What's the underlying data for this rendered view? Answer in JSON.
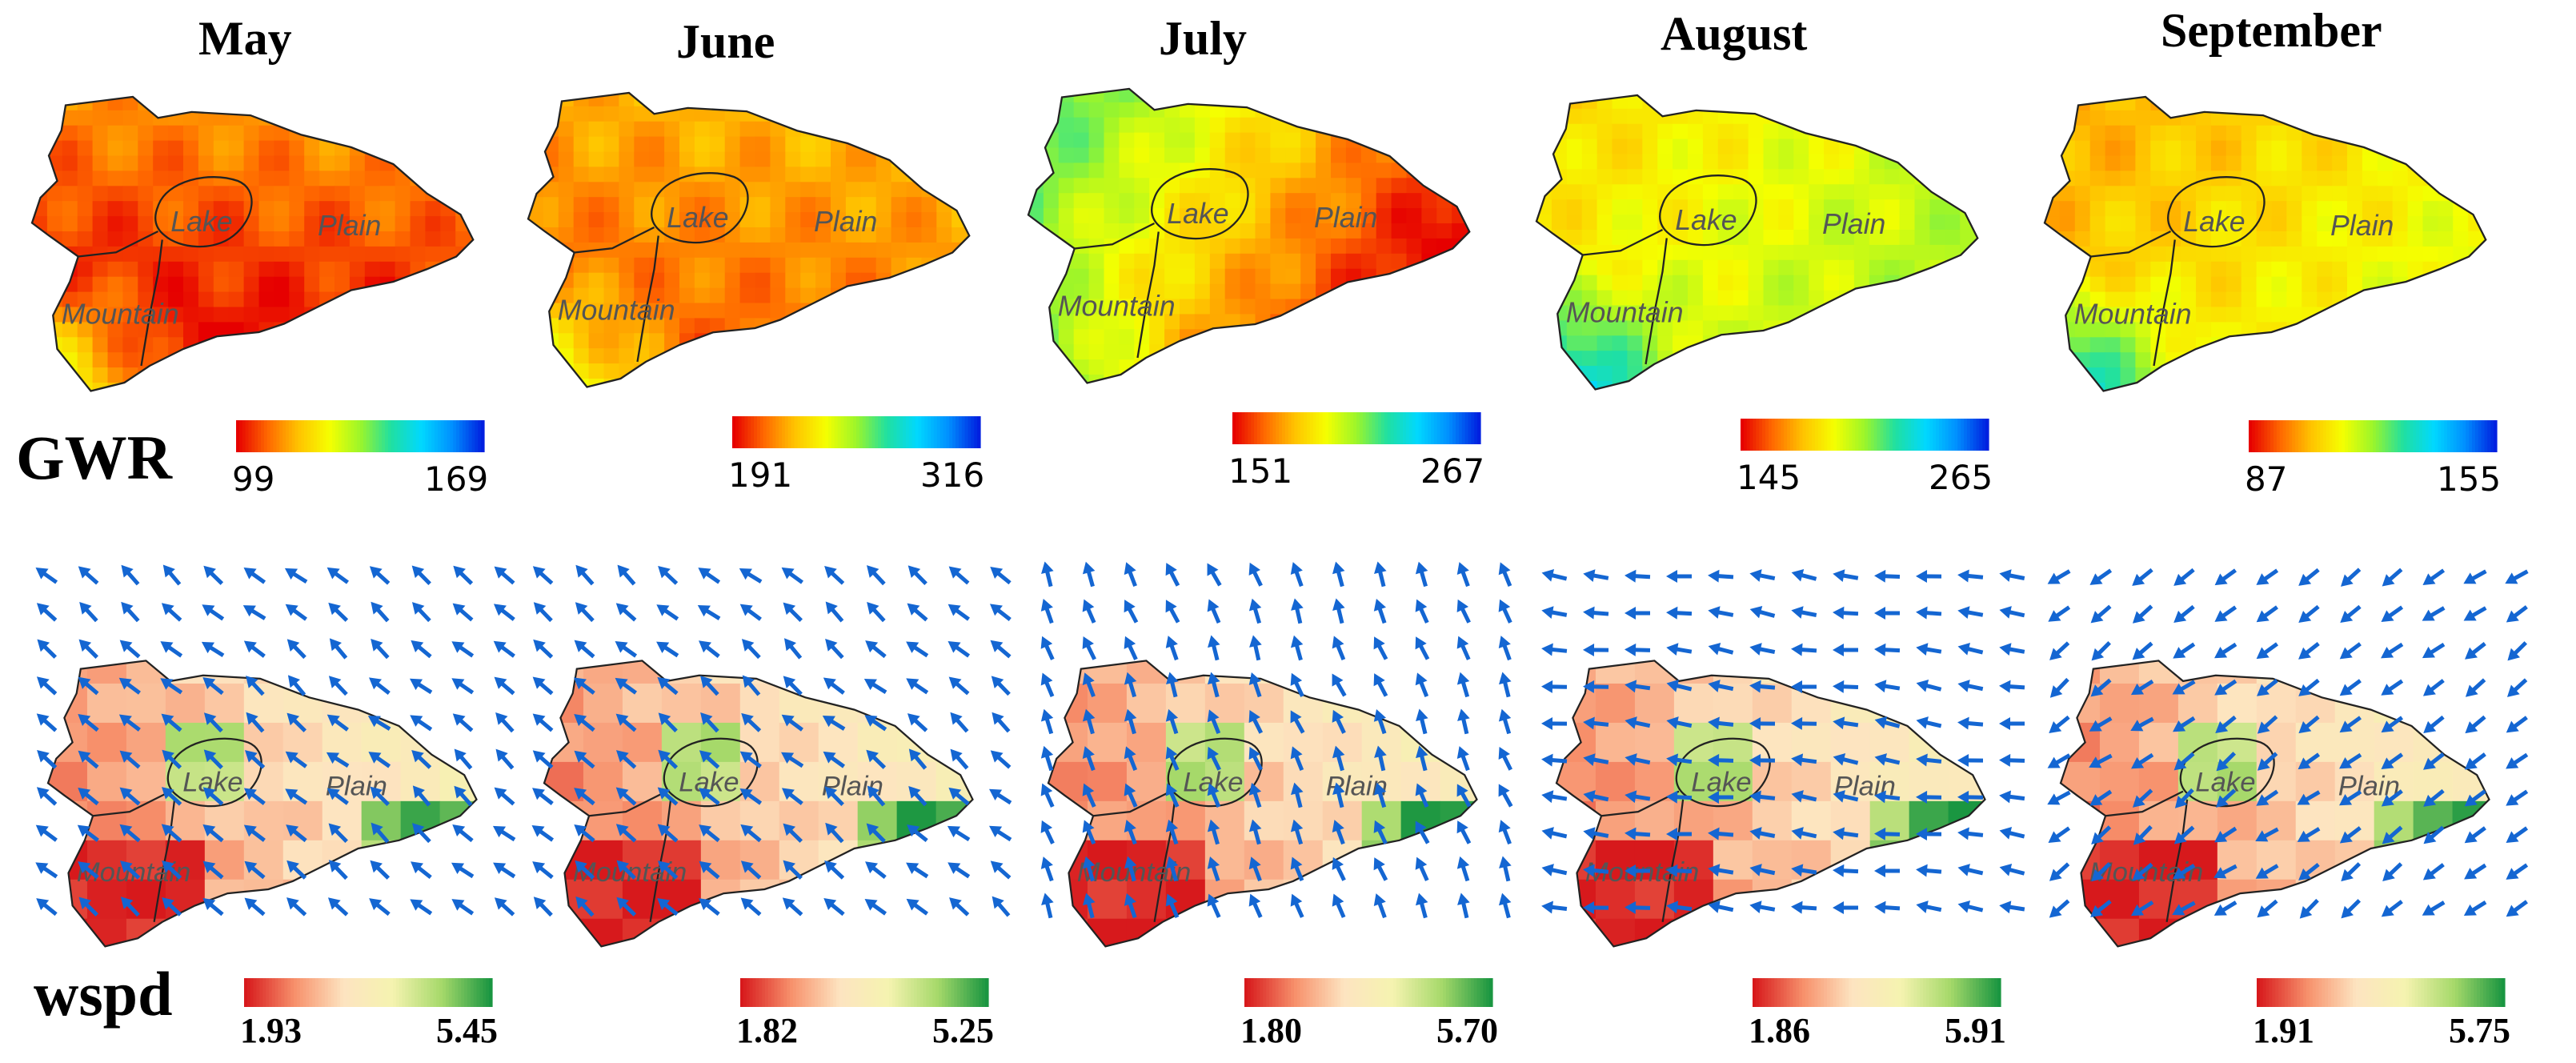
{
  "months": [
    "May",
    "June",
    "July",
    "August",
    "September"
  ],
  "row_labels": {
    "gwr": "GWR",
    "wspd": "wspd"
  },
  "region_labels": {
    "lake": "Lake",
    "plain": "Plain",
    "mountain": "Mountain"
  },
  "gwr": {
    "colors": [
      "#e60000",
      "#ff6a00",
      "#ffc400",
      "#f5ff00",
      "#9cf52a",
      "#20e0a0",
      "#00d8ff",
      "#0090ff",
      "#0020e0"
    ],
    "panels": [
      {
        "month": "May",
        "min": "99",
        "max": "169",
        "base": 0.18,
        "grad": [
          0.05,
          -0.25,
          0.6
        ]
      },
      {
        "month": "June",
        "min": "191",
        "max": "316",
        "base": 0.22,
        "grad": [
          0.05,
          -0.15,
          0.45
        ]
      },
      {
        "month": "July",
        "min": "151",
        "max": "267",
        "base": 0.62,
        "grad": [
          -0.55,
          -0.25,
          0.25
        ]
      },
      {
        "month": "August",
        "min": "145",
        "max": "265",
        "base": 0.28,
        "grad": [
          0.15,
          0.1,
          0.55
        ]
      },
      {
        "month": "September",
        "min": "87",
        "max": "155",
        "base": 0.2,
        "grad": [
          0.15,
          0.1,
          0.6
        ]
      }
    ]
  },
  "wspd": {
    "colors": [
      "#d7191c",
      "#f7906b",
      "#fde4c0",
      "#f5f3b0",
      "#a6d96a",
      "#1a9641"
    ],
    "panels": [
      {
        "month": "May",
        "min": "1.93",
        "max": "5.45",
        "wind": "nw"
      },
      {
        "month": "June",
        "min": "1.82",
        "max": "5.25",
        "wind": "nw"
      },
      {
        "month": "July",
        "min": "1.80",
        "max": "5.70",
        "wind": "nnw"
      },
      {
        "month": "August",
        "min": "1.86",
        "max": "5.91",
        "wind": "w"
      },
      {
        "month": "September",
        "min": "1.91",
        "max": "5.75",
        "wind": "sw"
      }
    ]
  }
}
